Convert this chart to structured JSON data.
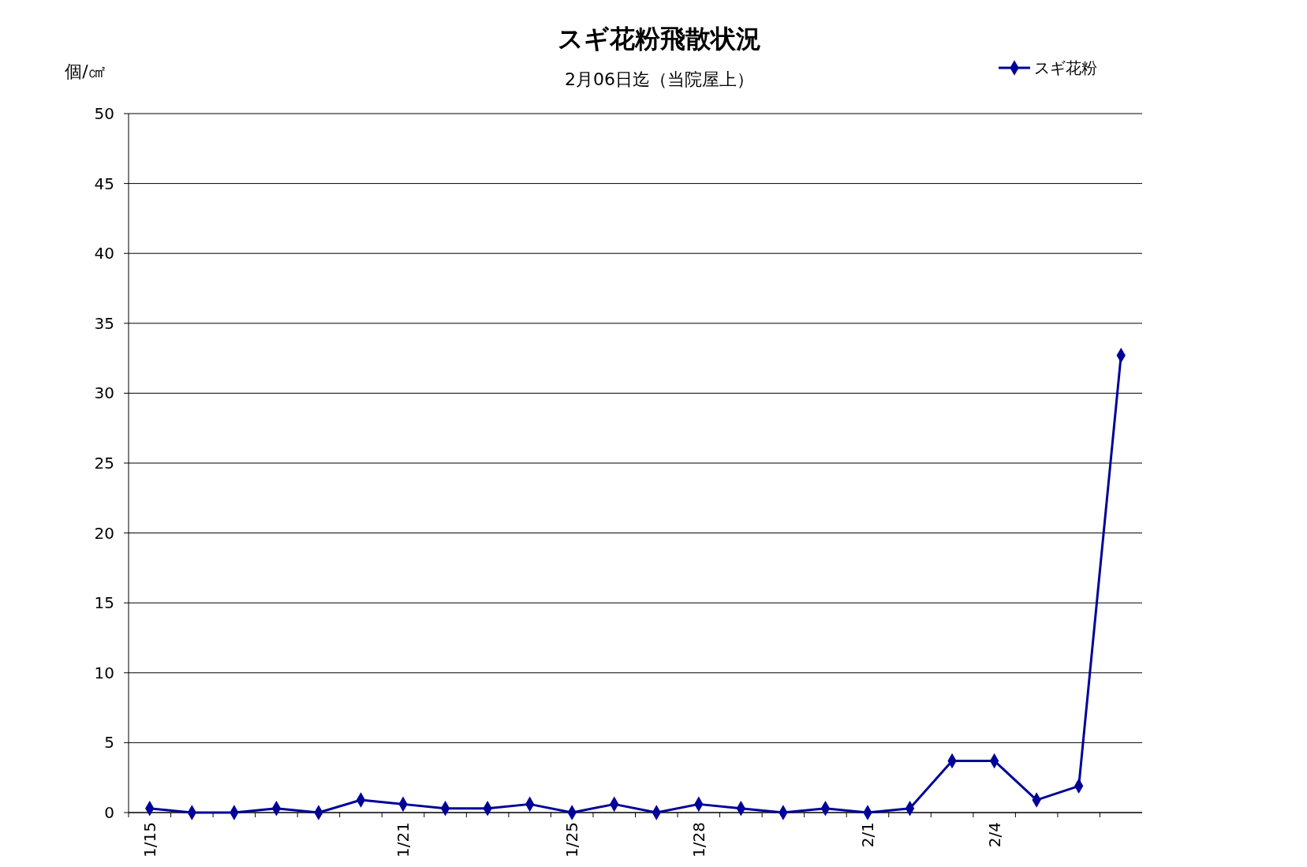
{
  "chart_data": {
    "type": "line",
    "title": "スギ花粉飛散状況",
    "subtitle": "2月06日迄（当院屋上）",
    "ylabel": "個/㎠",
    "categories": [
      "1/15",
      null,
      null,
      null,
      null,
      null,
      "1/21",
      null,
      null,
      null,
      "1/25",
      null,
      null,
      "1/28",
      null,
      null,
      null,
      "2/1",
      null,
      null,
      "2/4",
      null,
      null,
      null
    ],
    "series": [
      {
        "name": "スギ花粉",
        "color": "#000099",
        "values": [
          0.3,
          0,
          0,
          0.3,
          0,
          0.9,
          0.6,
          0.3,
          0.3,
          0.6,
          0,
          0.6,
          0,
          0.6,
          0.3,
          0,
          0.3,
          0,
          0.3,
          3.7,
          3.7,
          0.9,
          1.9,
          32.7
        ]
      }
    ],
    "ylim": [
      0,
      50
    ],
    "yticks": [
      0,
      5,
      10,
      15,
      20,
      25,
      30,
      35,
      40,
      45,
      50
    ],
    "grid": "y",
    "legend": "top right",
    "marker": "diamond",
    "line_style": "solid"
  }
}
